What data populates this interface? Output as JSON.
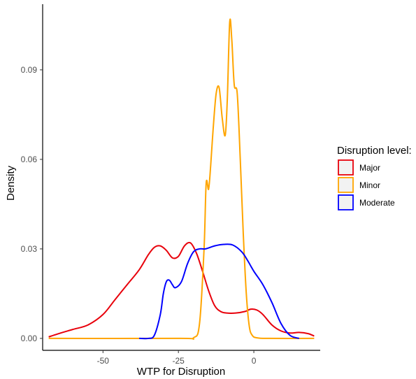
{
  "chart_data": {
    "type": "line",
    "title": "",
    "xlabel": "WTP for Disruption",
    "ylabel": "Density",
    "xlim": [
      -70,
      22
    ],
    "ylim": [
      -0.004,
      0.112
    ],
    "xticks": [
      -50,
      -25,
      0
    ],
    "xtick_labels": [
      "-50",
      "-25",
      "0"
    ],
    "yticks": [
      0.0,
      0.03,
      0.06,
      0.09
    ],
    "ytick_labels": [
      "0.00",
      "0.03",
      "0.06",
      "0.09"
    ],
    "grid": false,
    "legend": {
      "title": "Disruption level:",
      "placement": "right",
      "entries": [
        "Major",
        "Minor",
        "Moderate"
      ]
    },
    "series": [
      {
        "name": "Major",
        "color": "#e8000b",
        "x": [
          -68,
          -65,
          -60,
          -55,
          -50,
          -46,
          -42,
          -38,
          -35,
          -33,
          -31,
          -29,
          -27,
          -25,
          -23,
          -21,
          -19,
          -17,
          -15,
          -13,
          -11,
          -9,
          -6,
          -3,
          -1,
          1,
          3,
          6,
          9,
          12,
          15,
          18,
          20
        ],
        "y": [
          0.0005,
          0.0015,
          0.003,
          0.0045,
          0.008,
          0.013,
          0.018,
          0.023,
          0.028,
          0.0305,
          0.031,
          0.0295,
          0.027,
          0.0275,
          0.031,
          0.032,
          0.0285,
          0.0225,
          0.016,
          0.011,
          0.009,
          0.0085,
          0.0085,
          0.009,
          0.0098,
          0.0095,
          0.008,
          0.0045,
          0.0025,
          0.0018,
          0.002,
          0.0016,
          0.0008
        ]
      },
      {
        "name": "Minor",
        "color": "#ffa500",
        "x": [
          -68,
          -25,
          -20,
          -18,
          -16.5,
          -15.8,
          -15,
          -14.3,
          -13.5,
          -12.5,
          -11.5,
          -10.5,
          -9.5,
          -8.8,
          -8,
          -7.3,
          -6.5,
          -5.5,
          -4.5,
          -3.5,
          -2.5,
          -1.5,
          -0.5,
          1,
          5,
          20
        ],
        "y": [
          0.0,
          0.0,
          0.0002,
          0.005,
          0.03,
          0.052,
          0.05,
          0.058,
          0.07,
          0.082,
          0.084,
          0.074,
          0.068,
          0.08,
          0.106,
          0.1,
          0.085,
          0.082,
          0.06,
          0.035,
          0.015,
          0.004,
          0.001,
          0.0002,
          0.0,
          0.0
        ]
      },
      {
        "name": "Moderate",
        "color": "#0000ff",
        "x": [
          -38,
          -35,
          -33,
          -31,
          -30,
          -29,
          -28,
          -27,
          -26,
          -24,
          -22,
          -20,
          -18,
          -16,
          -13,
          -10,
          -7,
          -4,
          -2,
          0,
          3,
          6,
          9,
          12,
          15
        ],
        "y": [
          0.0,
          0.0,
          0.001,
          0.008,
          0.015,
          0.019,
          0.0195,
          0.018,
          0.017,
          0.019,
          0.025,
          0.029,
          0.03,
          0.03,
          0.031,
          0.0315,
          0.0313,
          0.029,
          0.026,
          0.0225,
          0.018,
          0.012,
          0.005,
          0.001,
          0.0
        ]
      }
    ]
  }
}
